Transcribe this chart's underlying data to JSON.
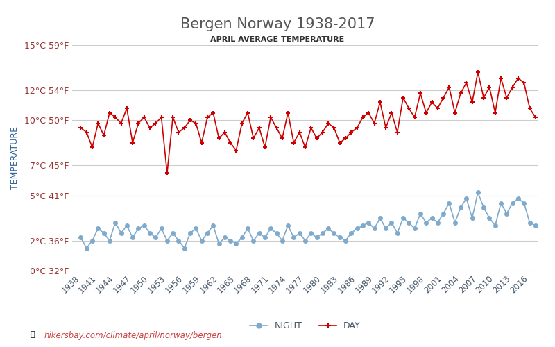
{
  "title": "Bergen Norway 1938-2017",
  "subtitle": "APRIL AVERAGE TEMPERATURE",
  "ylabel": "TEMPERATURE",
  "watermark": "hikersbay.com/climate/april/norway/bergen",
  "years": [
    1938,
    1939,
    1940,
    1941,
    1942,
    1943,
    1944,
    1945,
    1946,
    1947,
    1948,
    1949,
    1950,
    1951,
    1952,
    1953,
    1954,
    1955,
    1956,
    1957,
    1958,
    1959,
    1960,
    1961,
    1962,
    1963,
    1964,
    1965,
    1966,
    1967,
    1968,
    1969,
    1970,
    1971,
    1972,
    1973,
    1974,
    1975,
    1976,
    1977,
    1978,
    1979,
    1980,
    1981,
    1982,
    1983,
    1984,
    1985,
    1986,
    1987,
    1988,
    1989,
    1990,
    1991,
    1992,
    1993,
    1994,
    1995,
    1996,
    1997,
    1998,
    1999,
    2000,
    2001,
    2002,
    2003,
    2004,
    2005,
    2006,
    2007,
    2008,
    2009,
    2010,
    2011,
    2012,
    2013,
    2014,
    2015,
    2016,
    2017
  ],
  "day_temps": [
    9.5,
    9.2,
    8.2,
    9.8,
    9.0,
    10.5,
    10.2,
    9.8,
    10.8,
    8.5,
    9.8,
    10.2,
    9.5,
    9.8,
    10.2,
    6.5,
    10.2,
    9.2,
    9.5,
    10.0,
    9.8,
    8.5,
    10.2,
    10.5,
    8.8,
    9.2,
    8.5,
    8.0,
    9.8,
    10.5,
    8.8,
    9.5,
    8.2,
    10.2,
    9.5,
    8.8,
    10.5,
    8.5,
    9.2,
    8.2,
    9.5,
    8.8,
    9.2,
    9.8,
    9.5,
    8.5,
    8.8,
    9.2,
    9.5,
    10.2,
    10.5,
    9.8,
    11.2,
    9.5,
    10.5,
    9.2,
    11.5,
    10.8,
    10.2,
    11.8,
    10.5,
    11.2,
    10.8,
    11.5,
    12.2,
    10.5,
    11.8,
    12.5,
    11.2,
    13.2,
    11.5,
    12.2,
    10.5,
    12.8,
    11.5,
    12.2,
    12.8,
    12.5,
    10.8,
    10.2
  ],
  "night_temps": [
    2.2,
    1.5,
    2.0,
    2.8,
    2.5,
    2.0,
    3.2,
    2.5,
    3.0,
    2.2,
    2.8,
    3.0,
    2.5,
    2.2,
    2.8,
    2.0,
    2.5,
    2.0,
    1.5,
    2.5,
    2.8,
    2.0,
    2.5,
    3.0,
    1.8,
    2.2,
    2.0,
    1.8,
    2.2,
    2.8,
    2.0,
    2.5,
    2.2,
    2.8,
    2.5,
    2.0,
    3.0,
    2.2,
    2.5,
    2.0,
    2.5,
    2.2,
    2.5,
    2.8,
    2.5,
    2.2,
    2.0,
    2.5,
    2.8,
    3.0,
    3.2,
    2.8,
    3.5,
    2.8,
    3.2,
    2.5,
    3.5,
    3.2,
    2.8,
    3.8,
    3.2,
    3.5,
    3.2,
    3.8,
    4.5,
    3.2,
    4.2,
    4.8,
    3.5,
    5.2,
    4.2,
    3.5,
    3.0,
    4.5,
    3.8,
    4.5,
    4.8,
    4.5,
    3.2,
    3.0
  ],
  "day_color": "#cc0000",
  "night_color": "#7faacc",
  "title_color": "#555555",
  "subtitle_color": "#333333",
  "ylabel_color": "#336699",
  "tick_color": "#993333",
  "grid_color": "#cccccc",
  "watermark_color": "#cc4444",
  "background_color": "#ffffff",
  "ylim": [
    0,
    15
  ],
  "yticks_c": [
    0,
    2,
    5,
    7,
    10,
    12,
    15
  ],
  "ytick_labels": [
    "0°C 32°F",
    "2°C 36°F",
    "5°C 41°F",
    "7°C 45°F",
    "10°C 50°F",
    "12°C 54°F",
    "15°C 59°F"
  ],
  "xtick_years": [
    1938,
    1941,
    1944,
    1947,
    1950,
    1953,
    1956,
    1959,
    1962,
    1965,
    1968,
    1971,
    1974,
    1977,
    1980,
    1983,
    1986,
    1989,
    1992,
    1995,
    1998,
    2001,
    2004,
    2007,
    2010,
    2013,
    2016
  ]
}
